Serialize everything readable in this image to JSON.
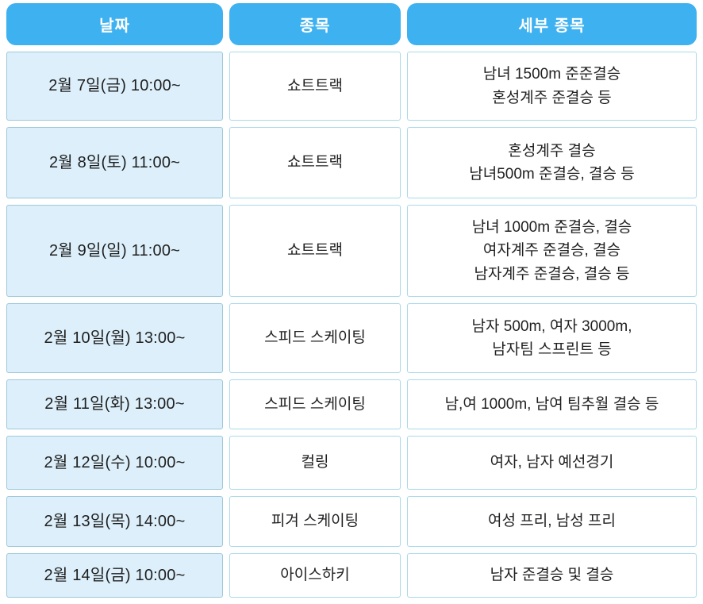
{
  "chart_data": {
    "type": "table",
    "columns": [
      "날짜",
      "종목",
      "세부 종목"
    ],
    "rows": [
      {
        "date": "2월 7일(금) 10:00~",
        "sport": "쇼트트랙",
        "details": [
          "남녀 1500m 준준결승",
          "혼성계주 준결승 등"
        ]
      },
      {
        "date": "2월 8일(토) 11:00~",
        "sport": "쇼트트랙",
        "details": [
          "혼성계주 결승",
          "남녀500m 준결승, 결승 등"
        ]
      },
      {
        "date": "2월 9일(일) 11:00~",
        "sport": "쇼트트랙",
        "details": [
          "남녀 1000m 준결승, 결승",
          "여자계주 준결승, 결승",
          "남자계주 준결승, 결승 등"
        ]
      },
      {
        "date": "2월 10일(월) 13:00~",
        "sport": "스피드 스케이팅",
        "details": [
          "남자 500m, 여자 3000m,",
          "남자팀 스프린트 등"
        ]
      },
      {
        "date": "2월 11일(화) 13:00~",
        "sport": "스피드 스케이팅",
        "details": [
          "남,여 1000m, 남여 팀추월 결승 등"
        ]
      },
      {
        "date": "2월 12일(수) 10:00~",
        "sport": "컬링",
        "details": [
          "여자, 남자 예선경기"
        ]
      },
      {
        "date": "2월 13일(목) 14:00~",
        "sport": "피겨 스케이팅",
        "details": [
          "여성 프리, 남성 프리"
        ]
      },
      {
        "date": "2월 14일(금) 10:00~",
        "sport": "아이스하키",
        "details": [
          "남자 준결승 및 결승"
        ]
      }
    ]
  },
  "colors": {
    "header_bg": "#3eb1f0",
    "header_text": "#ffffff",
    "date_cell_bg": "#dceffa",
    "date_cell_border": "#9dc9da",
    "cell_bg": "#ffffff",
    "cell_border": "#a9daeb",
    "body_text": "#1f1f1f",
    "page_bg": "#ffffff"
  }
}
